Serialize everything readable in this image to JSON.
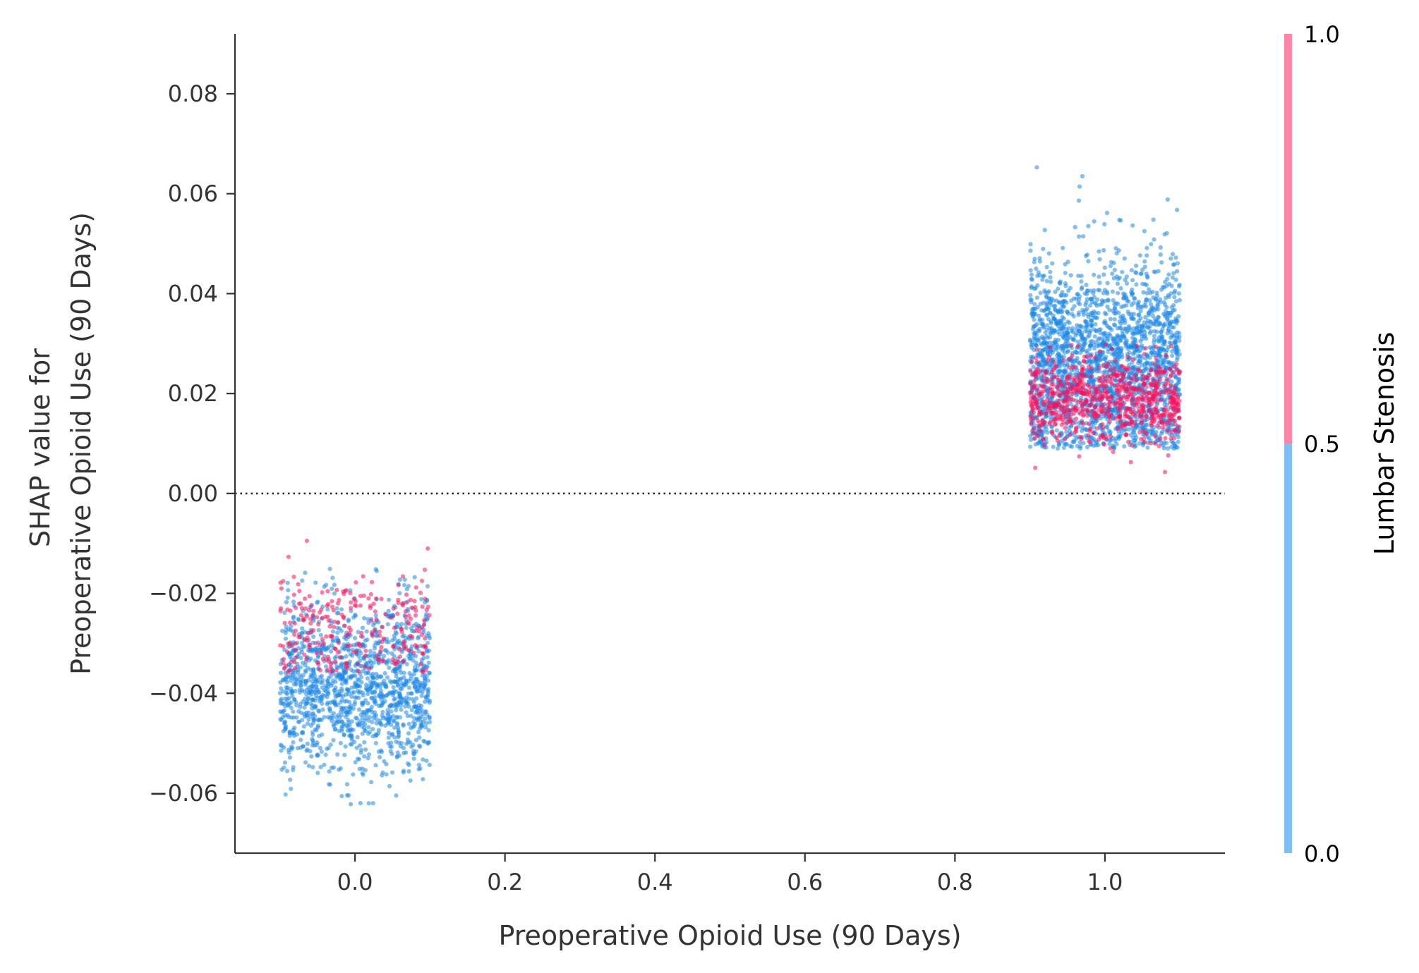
{
  "chart_data": {
    "type": "scatter",
    "xlabel": "Preoperative Opioid Use (90 Days)",
    "ylabel_lines": [
      "SHAP value for",
      "Preoperative Opioid Use (90 Days)"
    ],
    "xlim": [
      -0.16,
      1.16
    ],
    "ylim": [
      -0.072,
      0.092
    ],
    "x_ticks": [
      {
        "value": 0.0,
        "label": "0.0"
      },
      {
        "value": 0.2,
        "label": "0.2"
      },
      {
        "value": 0.4,
        "label": "0.4"
      },
      {
        "value": 0.6,
        "label": "0.6"
      },
      {
        "value": 0.8,
        "label": "0.8"
      },
      {
        "value": 1.0,
        "label": "1.0"
      }
    ],
    "y_ticks": [
      {
        "value": -0.06,
        "label": "−0.06"
      },
      {
        "value": -0.04,
        "label": "−0.04"
      },
      {
        "value": -0.02,
        "label": "−0.02"
      },
      {
        "value": 0.0,
        "label": "0.00"
      },
      {
        "value": 0.02,
        "label": "0.02"
      },
      {
        "value": 0.04,
        "label": "0.04"
      },
      {
        "value": 0.06,
        "label": "0.06"
      },
      {
        "value": 0.08,
        "label": "0.08"
      }
    ],
    "reference_line": {
      "y": 0.0,
      "style": "dotted"
    },
    "clusters": [
      {
        "feature_value": 0.0,
        "jitter_range": [
          -0.1,
          0.1
        ],
        "lumbar_stenosis_0": {
          "count": 1400,
          "center": -0.039,
          "spread": 0.0085,
          "min": -0.064,
          "max": -0.015
        },
        "lumbar_stenosis_1": {
          "count": 260,
          "center": -0.027,
          "spread": 0.0055,
          "min": -0.036,
          "max": -0.005
        }
      },
      {
        "feature_value": 1.0,
        "jitter_range": [
          -0.1,
          0.1
        ],
        "lumbar_stenosis_0": {
          "count": 2200,
          "center": 0.026,
          "spread": 0.0105,
          "min": 0.009,
          "max": 0.085
        },
        "lumbar_stenosis_1": {
          "count": 750,
          "center": 0.019,
          "spread": 0.0045,
          "min": 0.004,
          "max": 0.03
        }
      }
    ],
    "colorbar": {
      "title": "Lumbar Stenosis",
      "ticks": [
        {
          "value": 0.0,
          "label": "0.0"
        },
        {
          "value": 0.5,
          "label": "0.5"
        },
        {
          "value": 1.0,
          "label": "1.0"
        }
      ]
    },
    "colors": {
      "low": "#1E88E5",
      "high": "#FF0D57",
      "colorbar_low": "#7CC0F7",
      "colorbar_high": "#FF86A8",
      "axis": "#333333"
    },
    "grid": false,
    "point_alpha": 0.55
  }
}
